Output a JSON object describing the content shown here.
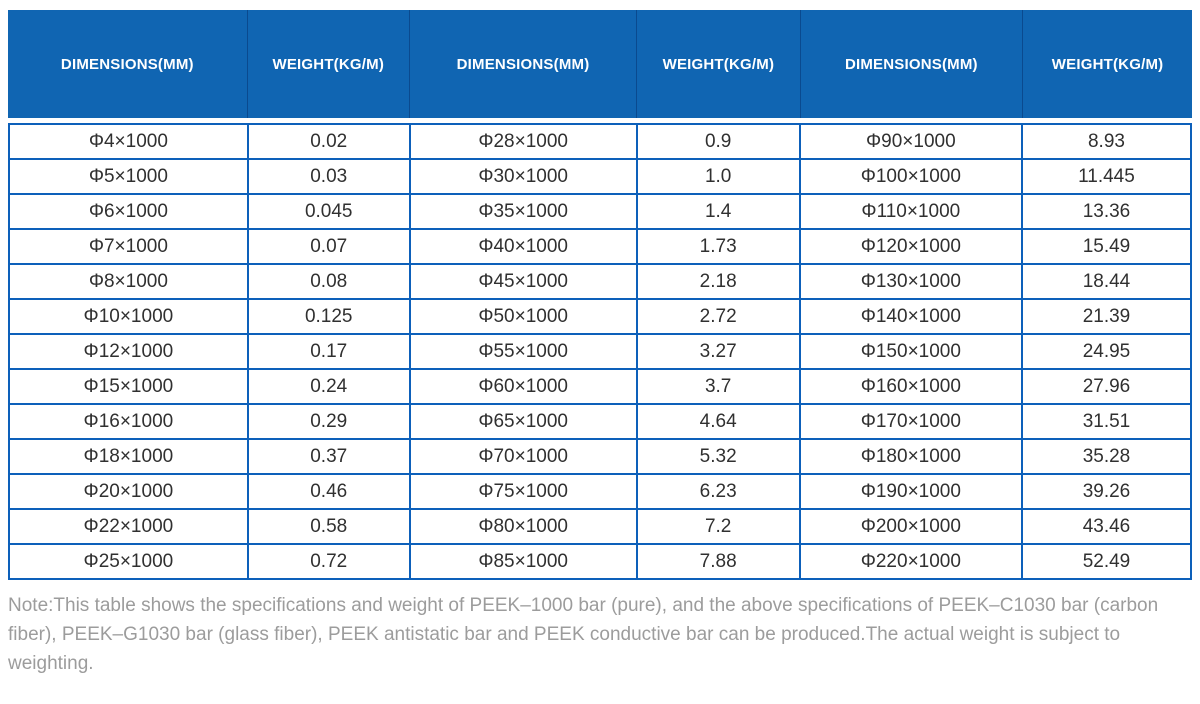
{
  "header": {
    "columns": [
      "DIMENSIONS(MM)",
      "WEIGHT(KG/M)",
      "DIMENSIONS(MM)",
      "WEIGHT(KG/M)",
      "DIMENSIONS(MM)",
      "WEIGHT(KG/M)"
    ]
  },
  "table": {
    "rows": [
      [
        "Φ4×1000",
        "0.02",
        "Φ28×1000",
        "0.9",
        "Φ90×1000",
        "8.93"
      ],
      [
        "Φ5×1000",
        "0.03",
        "Φ30×1000",
        "1.0",
        "Φ100×1000",
        "11.445"
      ],
      [
        "Φ6×1000",
        "0.045",
        "Φ35×1000",
        "1.4",
        "Φ110×1000",
        "13.36"
      ],
      [
        "Φ7×1000",
        "0.07",
        "Φ40×1000",
        "1.73",
        "Φ120×1000",
        "15.49"
      ],
      [
        "Φ8×1000",
        "0.08",
        "Φ45×1000",
        "2.18",
        "Φ130×1000",
        "18.44"
      ],
      [
        "Φ10×1000",
        "0.125",
        "Φ50×1000",
        "2.72",
        "Φ140×1000",
        "21.39"
      ],
      [
        "Φ12×1000",
        "0.17",
        "Φ55×1000",
        "3.27",
        "Φ150×1000",
        "24.95"
      ],
      [
        "Φ15×1000",
        "0.24",
        "Φ60×1000",
        "3.7",
        "Φ160×1000",
        "27.96"
      ],
      [
        "Φ16×1000",
        "0.29",
        "Φ65×1000",
        "4.64",
        "Φ170×1000",
        "31.51"
      ],
      [
        "Φ18×1000",
        "0.37",
        "Φ70×1000",
        "5.32",
        "Φ180×1000",
        "35.28"
      ],
      [
        "Φ20×1000",
        "0.46",
        "Φ75×1000",
        "6.23",
        "Φ190×1000",
        "39.26"
      ],
      [
        "Φ22×1000",
        "0.58",
        "Φ80×1000",
        "7.2",
        "Φ200×1000",
        "43.46"
      ],
      [
        "Φ25×1000",
        "0.72",
        "Φ85×1000",
        "7.88",
        "Φ220×1000",
        "52.49"
      ]
    ]
  },
  "note": "Note:This table shows the specifications and weight of PEEK–1000 bar (pure), and the above specifications of PEEK–C1030 bar (carbon fiber), PEEK–G1030 bar (glass fiber), PEEK antistatic bar and PEEK conductive bar can be produced.The actual weight is subject to weighting.",
  "colors": {
    "header_bg": "#1065b2",
    "header_divider": "#0a4a8f",
    "table_border": "#0d60ba",
    "body_text": "#303030",
    "note_text": "#9c9c9c"
  }
}
